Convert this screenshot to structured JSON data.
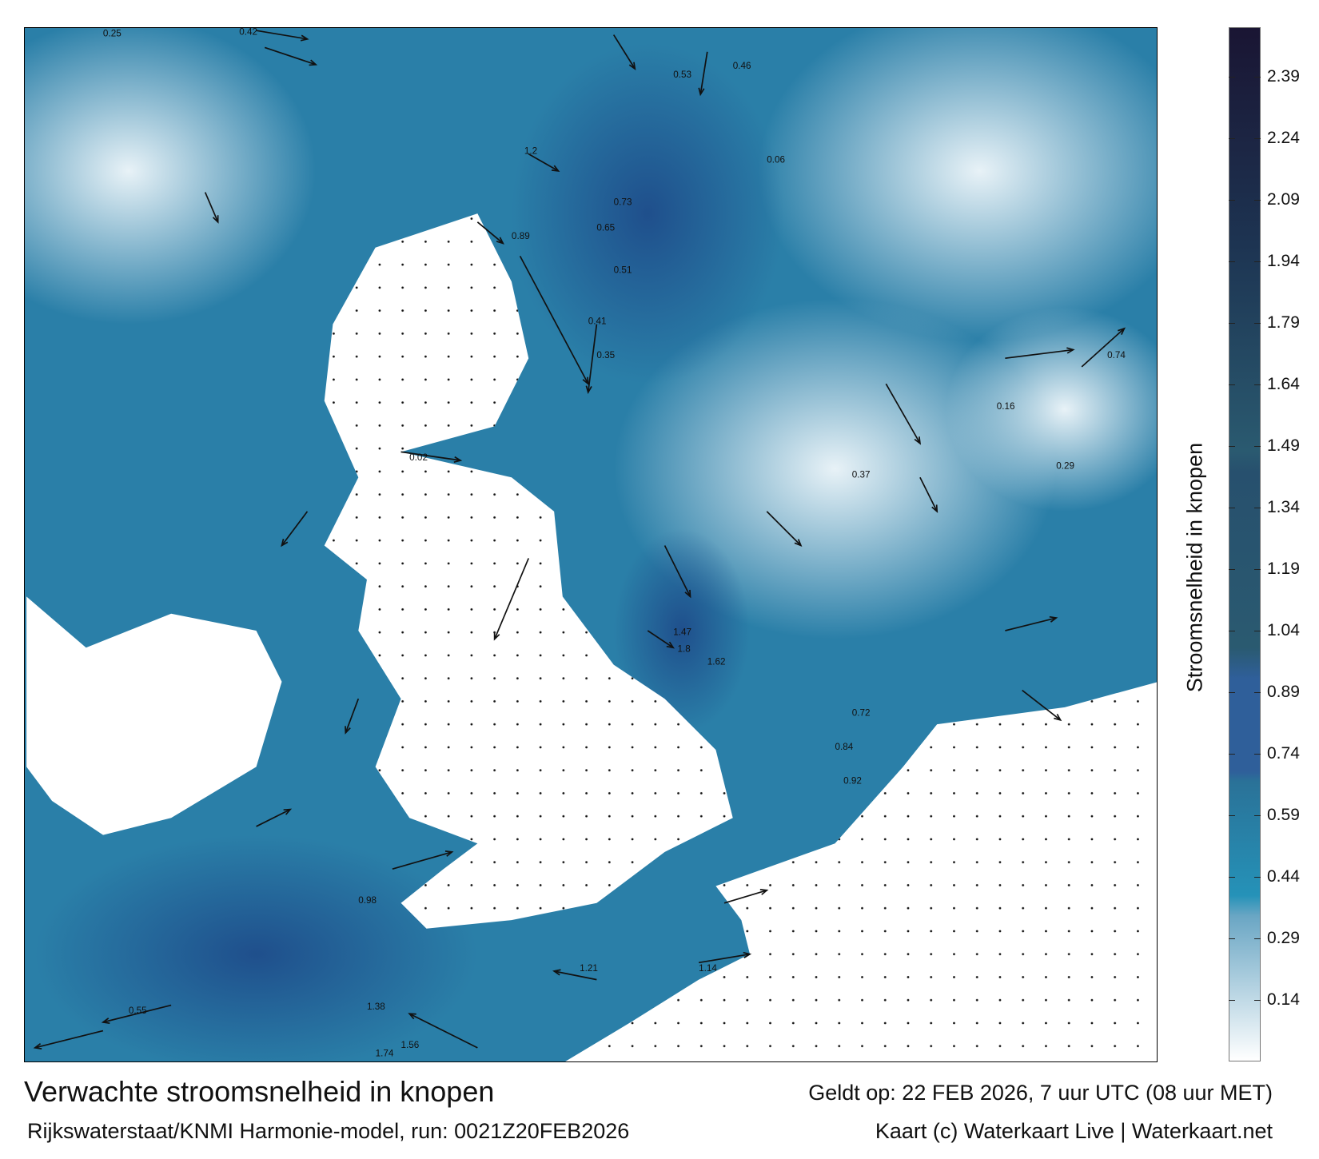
{
  "title": "Verwachte stroomsnelheid in knopen",
  "valid_time": "Geldt op: 22 FEB 2026, 7 uur UTC (08 uur MET)",
  "source": "Rijkswaterstaat/KNMI Harmonie-model, run: 0021Z20FEB2026",
  "credit": "Kaart (c) Waterkaart Live | Waterkaart.net",
  "colorbar": {
    "label": "Stroomsnelheid in knopen",
    "ticks": [
      "2.39",
      "2.24",
      "2.09",
      "1.94",
      "1.79",
      "1.64",
      "1.49",
      "1.34",
      "1.19",
      "1.04",
      "0.89",
      "0.74",
      "0.59",
      "0.44",
      "0.29",
      "0.14"
    ],
    "colors": {
      "low": "#ffffff",
      "mid_light": "#6aa6c4",
      "cyan": "#2592b8",
      "teal": "#2a7298",
      "blue": "#2f5f9a",
      "dark_teal": "#2a5a70",
      "navy": "#1d3452",
      "darkest": "#1a1533"
    }
  },
  "map": {
    "land_color": "#ffffff",
    "water_color": "#2a7fa8",
    "sample_labels": [
      "0.42",
      "0.25",
      "0.46",
      "0.53",
      "1.2",
      "0.89",
      "0.73",
      "0.65",
      "0.51",
      "0.41",
      "0.35",
      "0.74",
      "1.47",
      "1.8",
      "1.62",
      "0.98",
      "1.38",
      "1.21",
      "0.92",
      "0.84",
      "0.72",
      "1.14",
      "0.55",
      "0.37",
      "0.29",
      "0.16",
      "0.02",
      "0.06",
      "1.56",
      "1.74"
    ]
  }
}
